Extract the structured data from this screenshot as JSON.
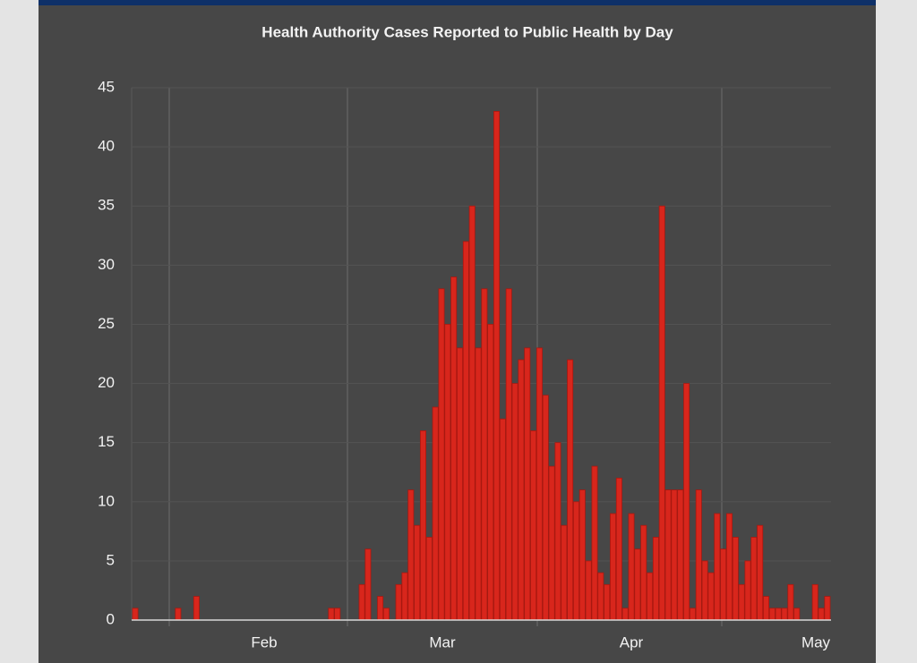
{
  "chart_data": {
    "type": "bar",
    "title": "Health Authority Cases Reported to Public Health by Day",
    "x_labels": [
      "Feb",
      "Mar",
      "Apr",
      "May"
    ],
    "values": [
      1,
      0,
      0,
      0,
      0,
      0,
      0,
      1,
      0,
      0,
      2,
      0,
      0,
      0,
      0,
      0,
      0,
      0,
      0,
      0,
      0,
      0,
      0,
      0,
      0,
      0,
      0,
      0,
      0,
      0,
      0,
      0,
      1,
      1,
      0,
      0,
      0,
      3,
      6,
      0,
      2,
      1,
      0,
      3,
      4,
      11,
      8,
      16,
      7,
      18,
      28,
      25,
      29,
      23,
      32,
      35,
      23,
      28,
      25,
      43,
      17,
      28,
      20,
      22,
      23,
      16,
      23,
      19,
      13,
      15,
      8,
      22,
      10,
      11,
      5,
      13,
      4,
      3,
      9,
      12,
      1,
      9,
      6,
      8,
      4,
      7,
      35,
      11,
      11,
      11,
      20,
      1,
      11,
      5,
      4,
      9,
      6,
      9,
      7,
      3,
      5,
      7,
      8,
      2,
      1,
      1,
      1,
      3,
      1,
      0,
      0,
      3,
      1,
      2
    ],
    "color": "#d8261c",
    "ylim": [
      0,
      45
    ],
    "yticks": [
      0,
      5,
      10,
      15,
      20,
      25,
      30,
      35,
      40,
      45
    ],
    "grid": true
  }
}
